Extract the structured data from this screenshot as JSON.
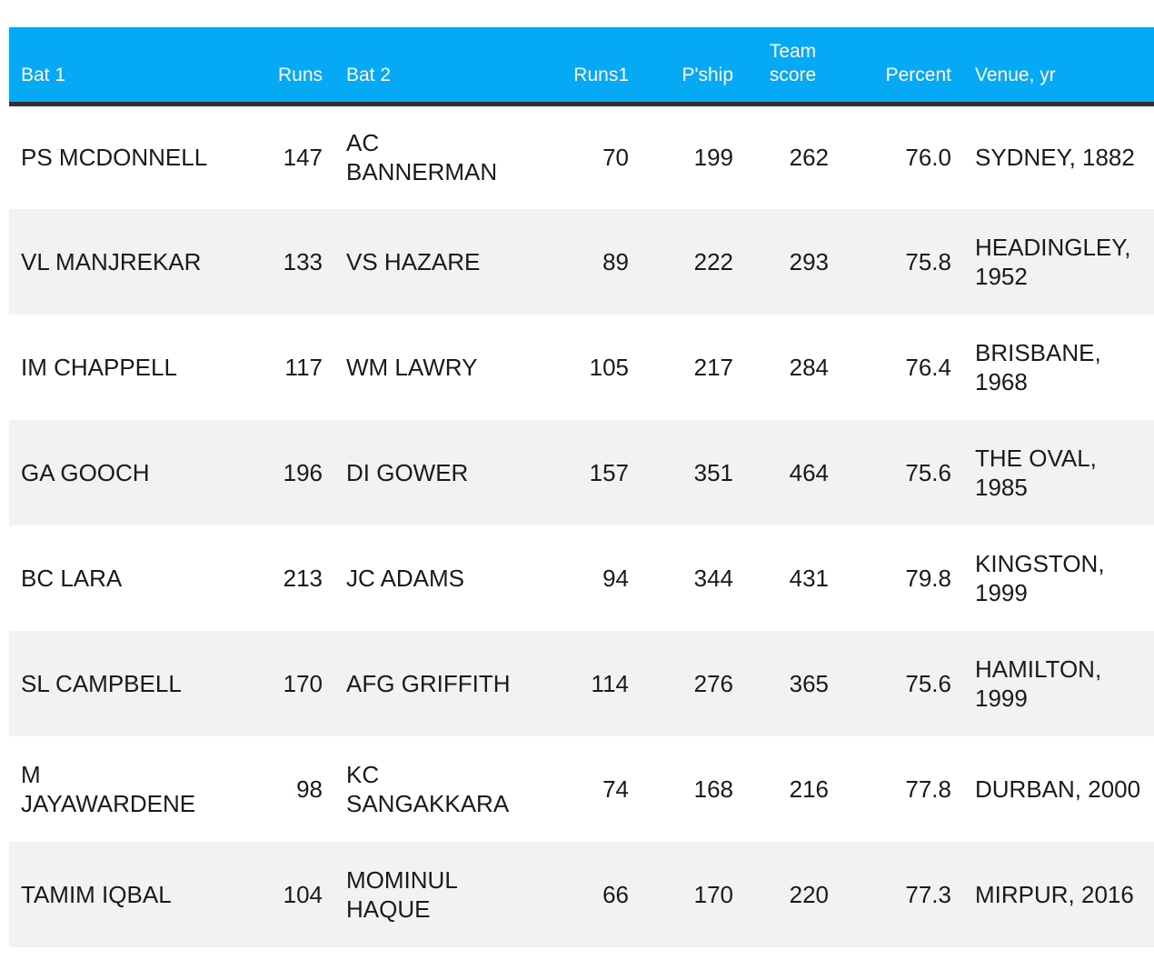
{
  "table": {
    "headers": {
      "bat1": "Bat 1",
      "runs": "Runs",
      "bat2": "Bat 2",
      "runs1": "Runs1",
      "pship": "P'ship",
      "team_score_line1": "Team",
      "team_score_line2": "score",
      "percent": "Percent",
      "venue": "Venue, yr"
    },
    "colors": {
      "header_bg": "#06a9f4",
      "header_text": "#ffffff",
      "stripe": "#f2f2f2",
      "header_rule": "#2f2f2f"
    },
    "rows": [
      {
        "bat1": "PS MCDONNELL",
        "runs": "147",
        "bat2": "AC BANNERMAN",
        "runs1": "70",
        "pship": "199",
        "team_score": "262",
        "percent": "76.0",
        "venue": "SYDNEY, 1882"
      },
      {
        "bat1": "VL MANJREKAR",
        "runs": "133",
        "bat2": "VS HAZARE",
        "runs1": "89",
        "pship": "222",
        "team_score": "293",
        "percent": "75.8",
        "venue": "HEADINGLEY, 1952"
      },
      {
        "bat1": "IM CHAPPELL",
        "runs": "117",
        "bat2": "WM LAWRY",
        "runs1": "105",
        "pship": "217",
        "team_score": "284",
        "percent": "76.4",
        "venue": "BRISBANE, 1968"
      },
      {
        "bat1": "GA GOOCH",
        "runs": "196",
        "bat2": "DI GOWER",
        "runs1": "157",
        "pship": "351",
        "team_score": "464",
        "percent": "75.6",
        "venue": "THE OVAL, 1985"
      },
      {
        "bat1": "BC LARA",
        "runs": "213",
        "bat2": "JC ADAMS",
        "runs1": "94",
        "pship": "344",
        "team_score": "431",
        "percent": "79.8",
        "venue": "KINGSTON, 1999"
      },
      {
        "bat1": "SL CAMPBELL",
        "runs": "170",
        "bat2": "AFG GRIFFITH",
        "runs1": "114",
        "pship": "276",
        "team_score": "365",
        "percent": "75.6",
        "venue": "HAMILTON, 1999"
      },
      {
        "bat1": "M JAYAWARDENE",
        "runs": "98",
        "bat2": "KC SANGAKKARA",
        "runs1": "74",
        "pship": "168",
        "team_score": "216",
        "percent": "77.8",
        "venue": "DURBAN, 2000"
      },
      {
        "bat1": "TAMIM IQBAL",
        "runs": "104",
        "bat2": "MOMINUL HAQUE",
        "runs1": "66",
        "pship": "170",
        "team_score": "220",
        "percent": "77.3",
        "venue": "MIRPUR, 2016"
      }
    ]
  }
}
